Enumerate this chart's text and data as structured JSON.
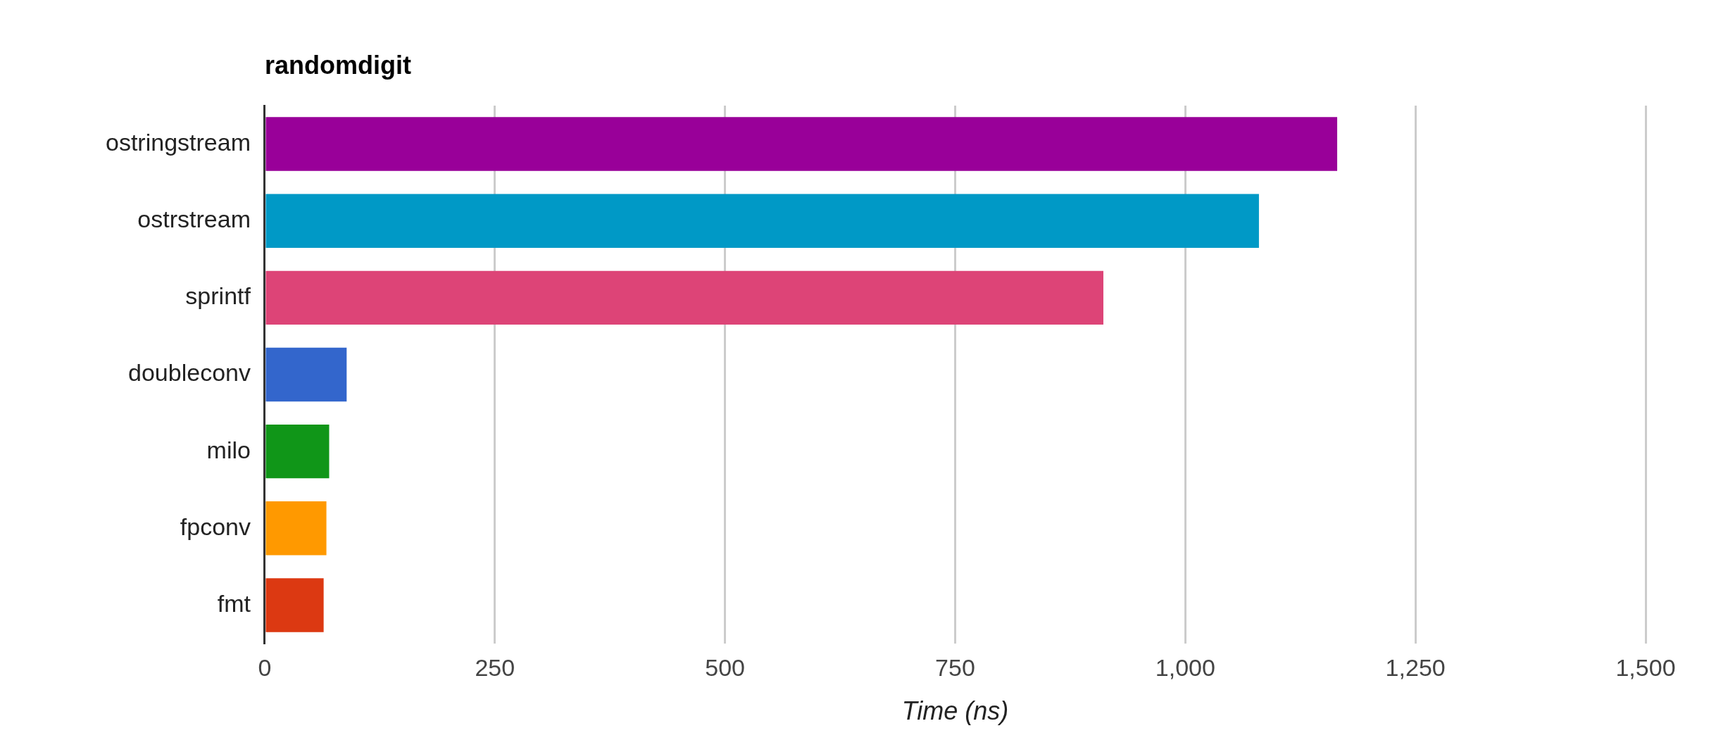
{
  "chart_data": {
    "type": "bar",
    "orientation": "horizontal",
    "title": "randomdigit",
    "xlabel": "Time (ns)",
    "categories": [
      "ostringstream",
      "ostrstream",
      "sprintf",
      "doubleconv",
      "milo",
      "fpconv",
      "fmt"
    ],
    "values": [
      1165,
      1080,
      911,
      89,
      70,
      67,
      64
    ],
    "colors": [
      "#990099",
      "#0099c6",
      "#dd4477",
      "#3366cc",
      "#109618",
      "#ff9900",
      "#dc3912"
    ],
    "xlim": [
      0,
      1500
    ],
    "xticks": [
      0,
      250,
      500,
      750,
      {
        "value": 1000,
        "label": "1,000"
      },
      {
        "value": 1250,
        "label": "1,250"
      },
      {
        "value": 1500,
        "label": "1,500"
      }
    ],
    "grid": "x",
    "legend": false
  }
}
